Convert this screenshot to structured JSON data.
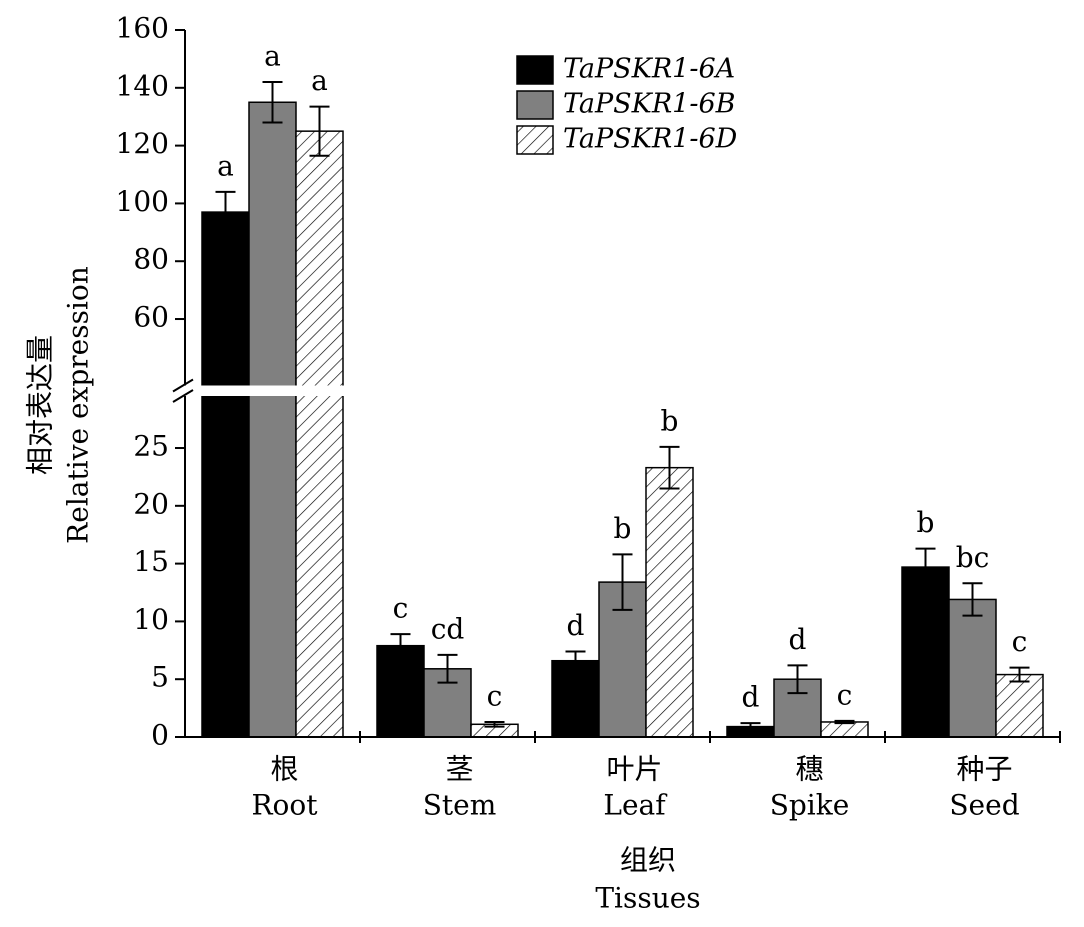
{
  "chart_data": {
    "type": "bar",
    "y_label": [
      "相对表达量",
      "Relative expression"
    ],
    "x_label": [
      "组织",
      "Tissues"
    ],
    "categories": [
      [
        "根",
        "Root"
      ],
      [
        "茎",
        "Stem"
      ],
      [
        "叶片",
        "Leaf"
      ],
      [
        "穗",
        "Spike"
      ],
      [
        "种子",
        "Seed"
      ]
    ],
    "series": [
      {
        "name": "TaPSKR1-6A",
        "color": "#000000",
        "pattern": "solid",
        "values": [
          97,
          7.9,
          6.6,
          0.9,
          14.7
        ],
        "errors": [
          7,
          1.0,
          0.8,
          0.3,
          1.6
        ],
        "letters": [
          "a",
          "c",
          "d",
          "d",
          "b"
        ]
      },
      {
        "name": "TaPSKR1-6B",
        "color": "#808080",
        "pattern": "solid",
        "values": [
          135,
          5.9,
          13.4,
          5.0,
          11.9
        ],
        "errors": [
          7,
          1.2,
          2.4,
          1.2,
          1.4
        ],
        "letters": [
          "a",
          "cd",
          "b",
          "d",
          "bc"
        ]
      },
      {
        "name": "TaPSKR1-6D",
        "color": "#000000",
        "pattern": "hatch",
        "values": [
          125,
          1.1,
          23.3,
          1.3,
          5.4
        ],
        "errors": [
          8.5,
          0.2,
          1.8,
          0.1,
          0.6
        ],
        "letters": [
          "a",
          "c",
          "b",
          "c",
          "c"
        ]
      }
    ],
    "ylim": [
      0,
      29.5
    ],
    "yticks": [
      0,
      5,
      10,
      15,
      20,
      25
    ],
    "ylim_upper": [
      37,
      160
    ],
    "yticks_upper": [
      60,
      80,
      100,
      120,
      140,
      160
    ],
    "axis_break": true,
    "legend": "top-right"
  }
}
